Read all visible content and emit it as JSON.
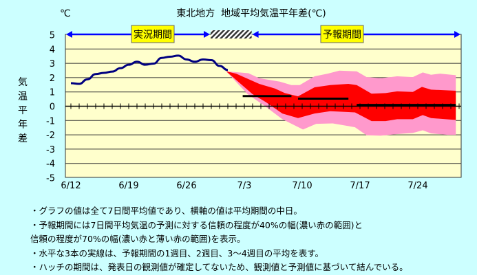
{
  "chart_data": {
    "type": "line",
    "title": "東北地方  地域平均気温平年差(℃)",
    "unit_label": "℃",
    "ylabel": "気温平年差",
    "ylim": [
      -5,
      5
    ],
    "yticks": [
      5,
      4,
      3,
      2,
      1,
      0,
      -1,
      -2,
      -3,
      -4,
      -5
    ],
    "x_unit": "days since 6/12",
    "xlim": [
      -0.6,
      47.3
    ],
    "xticks": [
      {
        "day": 0,
        "label": "6/12"
      },
      {
        "day": 7,
        "label": "6/19"
      },
      {
        "day": 14,
        "label": "6/26"
      },
      {
        "day": 21,
        "label": "7/3"
      },
      {
        "day": 28,
        "label": "7/10"
      },
      {
        "day": 35,
        "label": "7/17"
      },
      {
        "day": 42,
        "label": "7/24"
      }
    ],
    "grid": true,
    "periods": {
      "observed_label": "実況期間",
      "forecast_label": "予報期間",
      "hatch_days": [
        17,
        21.8
      ]
    },
    "observed": {
      "name": "実況",
      "color": "#000080",
      "start_day": 0,
      "values": [
        1.61,
        1.56,
        1.88,
        2.25,
        2.33,
        2.42,
        2.66,
        2.9,
        3.11,
        2.9,
        2.98,
        3.38,
        3.46,
        3.54,
        3.27,
        3.11,
        3.27,
        3.22,
        2.82,
        2.53
      ]
    },
    "band70": {
      "name": "信頼の程度70%",
      "color": "#ff99cc",
      "upper": [
        [
          18.8,
          2.44
        ],
        [
          21.5,
          2.31
        ],
        [
          22.8,
          1.96
        ],
        [
          25.3,
          1.72
        ],
        [
          26.7,
          1.48
        ],
        [
          27.7,
          1.48
        ],
        [
          29.5,
          2.09
        ],
        [
          31.1,
          2.28
        ],
        [
          32.5,
          2.49
        ],
        [
          34.6,
          2.44
        ],
        [
          35.8,
          2.04
        ],
        [
          37.5,
          1.96
        ],
        [
          39.5,
          2.09
        ],
        [
          41.4,
          2.04
        ],
        [
          42.6,
          2.36
        ],
        [
          43.6,
          2.2
        ],
        [
          44.7,
          2.28
        ],
        [
          46.6,
          2.17
        ]
      ],
      "lower": [
        [
          18.8,
          2.44
        ],
        [
          21.4,
          0.84
        ],
        [
          23.4,
          0.05
        ],
        [
          25.6,
          -0.91
        ],
        [
          28.1,
          -1.63
        ],
        [
          29.7,
          -1.23
        ],
        [
          31.7,
          -1.2
        ],
        [
          34.4,
          -1.47
        ],
        [
          35.8,
          -2.03
        ],
        [
          37.5,
          -2.06
        ],
        [
          39.5,
          -1.95
        ],
        [
          41.4,
          -1.87
        ],
        [
          42.6,
          -1.68
        ],
        [
          43.6,
          -1.9
        ],
        [
          45.6,
          -2.0
        ],
        [
          46.6,
          -2.0
        ]
      ]
    },
    "band40": {
      "name": "信頼の程度40%",
      "color": "#ff0000",
      "upper": [
        [
          18.8,
          2.44
        ],
        [
          20.0,
          2.28
        ],
        [
          22.8,
          1.56
        ],
        [
          24.7,
          1.24
        ],
        [
          25.9,
          0.92
        ],
        [
          27.5,
          0.69
        ],
        [
          29.5,
          1.32
        ],
        [
          31.4,
          1.48
        ],
        [
          33.6,
          1.56
        ],
        [
          34.6,
          1.48
        ],
        [
          36.4,
          0.88
        ],
        [
          38.1,
          0.92
        ],
        [
          39.5,
          1.04
        ],
        [
          41.4,
          1.0
        ],
        [
          42.5,
          1.35
        ],
        [
          43.6,
          1.16
        ],
        [
          46.6,
          1.08
        ]
      ],
      "lower": [
        [
          18.8,
          2.44
        ],
        [
          22.0,
          0.84
        ],
        [
          23.6,
          0.29
        ],
        [
          25.6,
          -0.51
        ],
        [
          27.5,
          -0.83
        ],
        [
          29.5,
          -0.51
        ],
        [
          31.4,
          -0.35
        ],
        [
          34.4,
          -0.43
        ],
        [
          36.4,
          -1.04
        ],
        [
          38.1,
          -1.04
        ],
        [
          39.5,
          -0.91
        ],
        [
          41.4,
          -0.91
        ],
        [
          42.6,
          -0.62
        ],
        [
          43.6,
          -0.83
        ],
        [
          46.6,
          -0.96
        ]
      ]
    },
    "weekly_means": [
      {
        "name": "1週目",
        "from": 20.8,
        "to": 26.7,
        "value": 0.71
      },
      {
        "name": "2週目",
        "from": 27.5,
        "to": 33.6,
        "value": 0.53
      },
      {
        "name": "3～4週目",
        "from": 34.6,
        "to": 46.6,
        "value": 0.09
      }
    ]
  },
  "notes": [
    "・グラフの値は全て7日間平均値であり、横軸の値は平均期間の中日。",
    "・予報期間には7日間平均気温の予測に対する信頼の程度が40%の幅(濃い赤の範囲)と",
    "信頼の程度が70%の幅(濃い赤と薄い赤の範囲)を表示。",
    "・水平な3本の実線は、予報期間の1週目、2週目、3～4週目の平均を表す。",
    "・ハッチの期間は、発表日の観測値が確定してないため、観測値と予測値に基づいて結んでいる。"
  ]
}
